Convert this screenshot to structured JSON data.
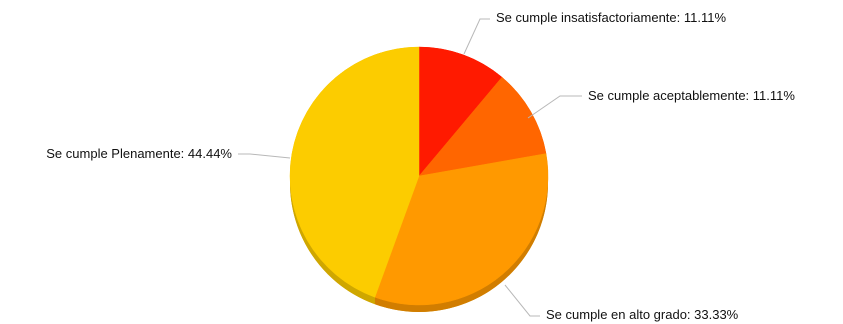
{
  "chart_data": {
    "type": "pie",
    "start_angle_deg": 0,
    "direction": "clockwise",
    "slices": [
      {
        "label": "Se cumple insatisfactoriamente",
        "value": 11.11,
        "display": "11.11%",
        "color": "#ff1a00"
      },
      {
        "label": "Se cumple aceptablemente",
        "value": 11.11,
        "display": "11.11%",
        "color": "#ff6600"
      },
      {
        "label": "Se cumple en alto grado",
        "value": 33.33,
        "display": "33.33%",
        "color": "#ff9900"
      },
      {
        "label": "Se cumple Plenamente",
        "value": 44.44,
        "display": "44.44%",
        "color": "#fccc00"
      }
    ]
  }
}
